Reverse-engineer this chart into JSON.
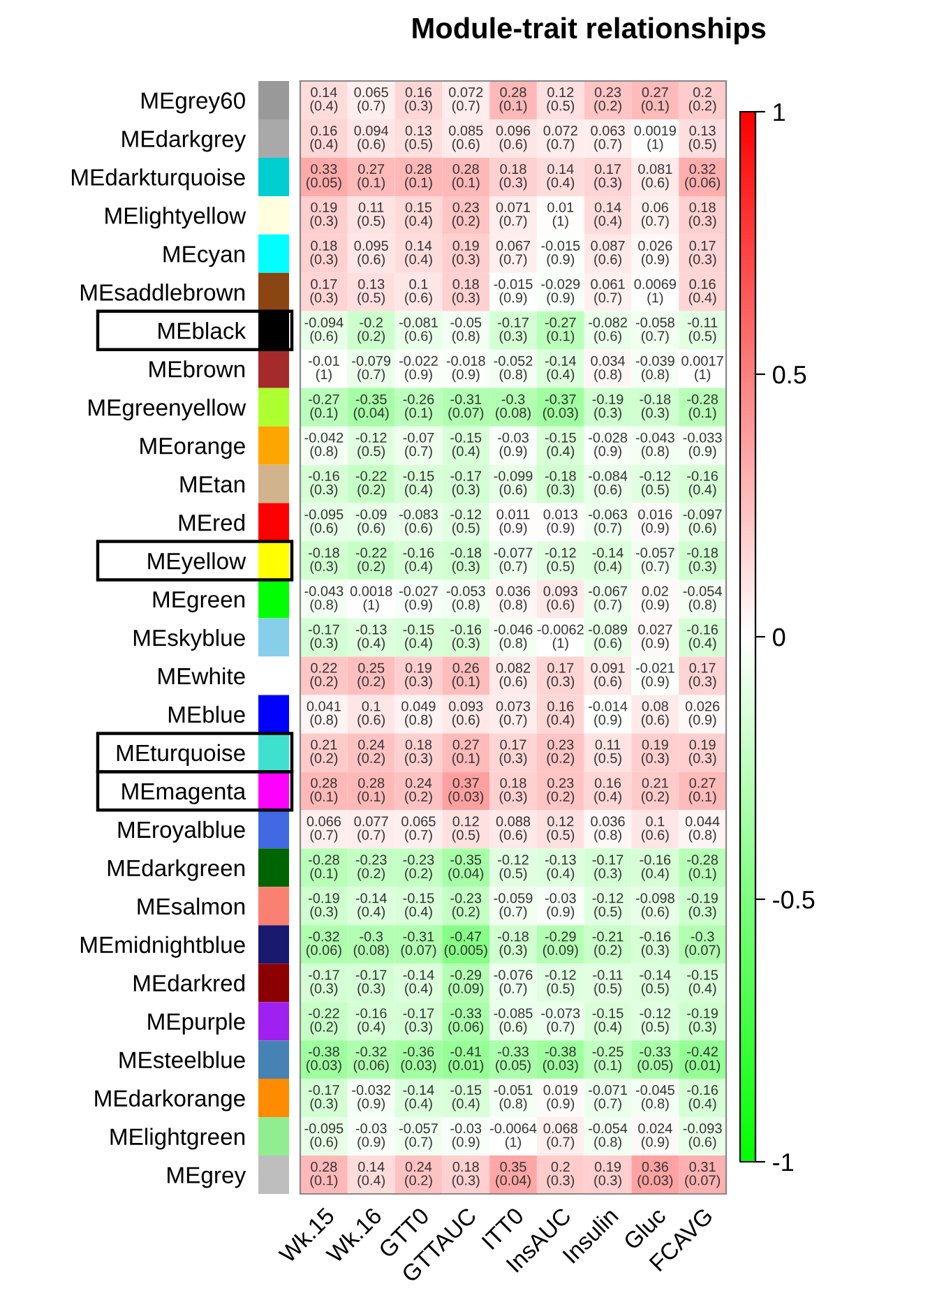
{
  "chart_data": {
    "type": "heatmap",
    "title": "Module-trait relationships",
    "categories": [
      "Wk.15",
      "Wk.16",
      "GTT0",
      "GTTAUC",
      "ITT0",
      "InsAUC",
      "Insulin",
      "Gluc",
      "FCAVG"
    ],
    "y_categories": [
      "MEgrey60",
      "MEdarkgrey",
      "MEdarkturquoise",
      "MElightyellow",
      "MEcyan",
      "MEsaddlebrown",
      "MEblack",
      "MEbrown",
      "MEgreenyellow",
      "MEorange",
      "MEtan",
      "MEred",
      "MEyellow",
      "MEgreen",
      "MEskyblue",
      "MEwhite",
      "MEblue",
      "MEturquoise",
      "MEmagenta",
      "MEroyalblue",
      "MEdarkgreen",
      "MEsalmon",
      "MEmidnightblue",
      "MEdarkred",
      "MEpurple",
      "MEsteelblue",
      "MEdarkorange",
      "MElightgreen",
      "MEgrey"
    ],
    "cells": [
      [
        0.14,
        0.065,
        0.16,
        0.072,
        0.28,
        0.12,
        0.23,
        0.27,
        0.2
      ],
      [
        0.16,
        0.094,
        0.13,
        0.085,
        0.096,
        0.072,
        0.063,
        0.0019,
        0.13
      ],
      [
        0.33,
        0.27,
        0.28,
        0.28,
        0.18,
        0.14,
        0.17,
        0.081,
        0.32
      ],
      [
        0.19,
        0.11,
        0.15,
        0.23,
        0.071,
        0.01,
        0.14,
        0.06,
        0.18
      ],
      [
        0.18,
        0.095,
        0.14,
        0.19,
        0.067,
        -0.015,
        0.087,
        0.026,
        0.17
      ],
      [
        0.17,
        0.13,
        0.1,
        0.18,
        -0.015,
        -0.029,
        0.061,
        0.0069,
        0.16
      ],
      [
        -0.094,
        -0.2,
        -0.081,
        -0.05,
        -0.17,
        -0.27,
        -0.082,
        -0.058,
        -0.11
      ],
      [
        -0.01,
        -0.079,
        -0.022,
        -0.018,
        -0.052,
        -0.14,
        0.034,
        -0.039,
        0.0017
      ],
      [
        -0.27,
        -0.35,
        -0.26,
        -0.31,
        -0.3,
        -0.37,
        -0.19,
        -0.18,
        -0.28
      ],
      [
        -0.042,
        -0.12,
        -0.07,
        -0.15,
        -0.03,
        -0.15,
        -0.028,
        -0.043,
        -0.033
      ],
      [
        -0.16,
        -0.22,
        -0.15,
        -0.17,
        -0.099,
        -0.18,
        -0.084,
        -0.12,
        -0.16
      ],
      [
        -0.095,
        -0.09,
        -0.083,
        -0.12,
        0.011,
        0.013,
        -0.063,
        0.016,
        -0.097
      ],
      [
        -0.18,
        -0.22,
        -0.16,
        -0.18,
        -0.077,
        -0.12,
        -0.14,
        -0.057,
        -0.18
      ],
      [
        -0.043,
        0.0018,
        -0.027,
        -0.053,
        0.036,
        0.093,
        -0.067,
        0.02,
        -0.054
      ],
      [
        -0.17,
        -0.13,
        -0.15,
        -0.16,
        -0.046,
        -0.0062,
        -0.089,
        0.027,
        -0.16
      ],
      [
        0.22,
        0.25,
        0.19,
        0.26,
        0.082,
        0.17,
        0.091,
        -0.021,
        0.17
      ],
      [
        0.041,
        0.1,
        0.049,
        0.093,
        0.073,
        0.16,
        -0.014,
        0.08,
        0.026
      ],
      [
        0.21,
        0.24,
        0.18,
        0.27,
        0.17,
        0.23,
        0.11,
        0.19,
        0.19
      ],
      [
        0.28,
        0.28,
        0.24,
        0.37,
        0.18,
        0.23,
        0.16,
        0.21,
        0.27
      ],
      [
        0.066,
        0.077,
        0.065,
        0.12,
        0.088,
        0.12,
        0.036,
        0.1,
        0.044
      ],
      [
        -0.28,
        -0.23,
        -0.23,
        -0.35,
        -0.12,
        -0.13,
        -0.17,
        -0.16,
        -0.28
      ],
      [
        -0.19,
        -0.14,
        -0.15,
        -0.23,
        -0.059,
        -0.03,
        -0.12,
        -0.098,
        -0.19
      ],
      [
        -0.32,
        -0.3,
        -0.31,
        -0.47,
        -0.18,
        -0.29,
        -0.21,
        -0.16,
        -0.3
      ],
      [
        -0.17,
        -0.17,
        -0.14,
        -0.29,
        -0.076,
        -0.12,
        -0.11,
        -0.14,
        -0.15
      ],
      [
        -0.22,
        -0.16,
        -0.17,
        -0.33,
        -0.085,
        -0.073,
        -0.15,
        -0.12,
        -0.19
      ],
      [
        -0.38,
        -0.32,
        -0.36,
        -0.41,
        -0.33,
        -0.38,
        -0.25,
        -0.33,
        -0.42
      ],
      [
        -0.17,
        -0.032,
        -0.14,
        -0.15,
        -0.051,
        0.019,
        -0.071,
        -0.045,
        -0.16
      ],
      [
        -0.095,
        -0.03,
        -0.057,
        -0.03,
        -0.0064,
        0.068,
        -0.054,
        0.024,
        -0.093
      ],
      [
        0.28,
        0.14,
        0.24,
        0.18,
        0.35,
        0.2,
        0.19,
        0.36,
        0.31
      ]
    ],
    "cell_labels": [
      [
        "0.14\n(0.4)",
        "0.065\n(0.7)",
        "0.16\n(0.3)",
        "0.072\n(0.7)",
        "0.28\n(0.1)",
        "0.12\n(0.5)",
        "0.23\n(0.2)",
        "0.27\n(0.1)",
        "0.2\n(0.2)"
      ],
      [
        "0.16\n(0.4)",
        "0.094\n(0.6)",
        "0.13\n(0.5)",
        "0.085\n(0.6)",
        "0.096\n(0.6)",
        "0.072\n(0.7)",
        "0.063\n(0.7)",
        "0.0019\n(1)",
        "0.13\n(0.5)"
      ],
      [
        "0.33\n(0.05)",
        "0.27\n(0.1)",
        "0.28\n(0.1)",
        "0.28\n(0.1)",
        "0.18\n(0.3)",
        "0.14\n(0.4)",
        "0.17\n(0.3)",
        "0.081\n(0.6)",
        "0.32\n(0.06)"
      ],
      [
        "0.19\n(0.3)",
        "0.11\n(0.5)",
        "0.15\n(0.4)",
        "0.23\n(0.2)",
        "0.071\n(0.7)",
        "0.01\n(1)",
        "0.14\n(0.4)",
        "0.06\n(0.7)",
        "0.18\n(0.3)"
      ],
      [
        "0.18\n(0.3)",
        "0.095\n(0.6)",
        "0.14\n(0.4)",
        "0.19\n(0.3)",
        "0.067\n(0.7)",
        "-0.015\n(0.9)",
        "0.087\n(0.6)",
        "0.026\n(0.9)",
        "0.17\n(0.3)"
      ],
      [
        "0.17\n(0.3)",
        "0.13\n(0.5)",
        "0.1\n(0.6)",
        "0.18\n(0.3)",
        "-0.015\n(0.9)",
        "-0.029\n(0.9)",
        "0.061\n(0.7)",
        "0.0069\n(1)",
        "0.16\n(0.4)"
      ],
      [
        "-0.094\n(0.6)",
        "-0.2\n(0.2)",
        "-0.081\n(0.6)",
        "-0.05\n(0.8)",
        "-0.17\n(0.3)",
        "-0.27\n(0.1)",
        "-0.082\n(0.6)",
        "-0.058\n(0.7)",
        "-0.11\n(0.5)"
      ],
      [
        "-0.01\n(1)",
        "-0.079\n(0.7)",
        "-0.022\n(0.9)",
        "-0.018\n(0.9)",
        "-0.052\n(0.8)",
        "-0.14\n(0.4)",
        "0.034\n(0.8)",
        "-0.039\n(0.8)",
        "0.0017\n(1)"
      ],
      [
        "-0.27\n(0.1)",
        "-0.35\n(0.04)",
        "-0.26\n(0.1)",
        "-0.31\n(0.07)",
        "-0.3\n(0.08)",
        "-0.37\n(0.03)",
        "-0.19\n(0.3)",
        "-0.18\n(0.3)",
        "-0.28\n(0.1)"
      ],
      [
        "-0.042\n(0.8)",
        "-0.12\n(0.5)",
        "-0.07\n(0.7)",
        "-0.15\n(0.4)",
        "-0.03\n(0.9)",
        "-0.15\n(0.4)",
        "-0.028\n(0.9)",
        "-0.043\n(0.8)",
        "-0.033\n(0.9)"
      ],
      [
        "-0.16\n(0.3)",
        "-0.22\n(0.2)",
        "-0.15\n(0.4)",
        "-0.17\n(0.3)",
        "-0.099\n(0.6)",
        "-0.18\n(0.3)",
        "-0.084\n(0.6)",
        "-0.12\n(0.5)",
        "-0.16\n(0.4)"
      ],
      [
        "-0.095\n(0.6)",
        "-0.09\n(0.6)",
        "-0.083\n(0.6)",
        "-0.12\n(0.5)",
        "0.011\n(0.9)",
        "0.013\n(0.9)",
        "-0.063\n(0.7)",
        "0.016\n(0.9)",
        "-0.097\n(0.6)"
      ],
      [
        "-0.18\n(0.3)",
        "-0.22\n(0.2)",
        "-0.16\n(0.4)",
        "-0.18\n(0.3)",
        "-0.077\n(0.7)",
        "-0.12\n(0.5)",
        "-0.14\n(0.4)",
        "-0.057\n(0.7)",
        "-0.18\n(0.3)"
      ],
      [
        "-0.043\n(0.8)",
        "0.0018\n(1)",
        "-0.027\n(0.9)",
        "-0.053\n(0.8)",
        "0.036\n(0.8)",
        "0.093\n(0.6)",
        "-0.067\n(0.7)",
        "0.02\n(0.9)",
        "-0.054\n(0.8)"
      ],
      [
        "-0.17\n(0.3)",
        "-0.13\n(0.4)",
        "-0.15\n(0.4)",
        "-0.16\n(0.3)",
        "-0.046\n(0.8)",
        "-0.0062\n(1)",
        "-0.089\n(0.6)",
        "0.027\n(0.9)",
        "-0.16\n(0.4)"
      ],
      [
        "0.22\n(0.2)",
        "0.25\n(0.2)",
        "0.19\n(0.3)",
        "0.26\n(0.1)",
        "0.082\n(0.6)",
        "0.17\n(0.3)",
        "0.091\n(0.6)",
        "-0.021\n(0.9)",
        "0.17\n(0.3)"
      ],
      [
        "0.041\n(0.8)",
        "0.1\n(0.6)",
        "0.049\n(0.8)",
        "0.093\n(0.6)",
        "0.073\n(0.7)",
        "0.16\n(0.4)",
        "-0.014\n(0.9)",
        "0.08\n(0.6)",
        "0.026\n(0.9)"
      ],
      [
        "0.21\n(0.2)",
        "0.24\n(0.2)",
        "0.18\n(0.3)",
        "0.27\n(0.1)",
        "0.17\n(0.3)",
        "0.23\n(0.2)",
        "0.11\n(0.5)",
        "0.19\n(0.3)",
        "0.19\n(0.3)"
      ],
      [
        "0.28\n(0.1)",
        "0.28\n(0.1)",
        "0.24\n(0.2)",
        "0.37\n(0.03)",
        "0.18\n(0.3)",
        "0.23\n(0.2)",
        "0.16\n(0.4)",
        "0.21\n(0.2)",
        "0.27\n(0.1)"
      ],
      [
        "0.066\n(0.7)",
        "0.077\n(0.7)",
        "0.065\n(0.7)",
        "0.12\n(0.5)",
        "0.088\n(0.6)",
        "0.12\n(0.5)",
        "0.036\n(0.8)",
        "0.1\n(0.6)",
        "0.044\n(0.8)"
      ],
      [
        "-0.28\n(0.1)",
        "-0.23\n(0.2)",
        "-0.23\n(0.2)",
        "-0.35\n(0.04)",
        "-0.12\n(0.5)",
        "-0.13\n(0.4)",
        "-0.17\n(0.3)",
        "-0.16\n(0.4)",
        "-0.28\n(0.1)"
      ],
      [
        "-0.19\n(0.3)",
        "-0.14\n(0.4)",
        "-0.15\n(0.4)",
        "-0.23\n(0.2)",
        "-0.059\n(0.7)",
        "-0.03\n(0.9)",
        "-0.12\n(0.5)",
        "-0.098\n(0.6)",
        "-0.19\n(0.3)"
      ],
      [
        "-0.32\n(0.06)",
        "-0.3\n(0.08)",
        "-0.31\n(0.07)",
        "-0.47\n(0.005)",
        "-0.18\n(0.3)",
        "-0.29\n(0.09)",
        "-0.21\n(0.2)",
        "-0.16\n(0.3)",
        "-0.3\n(0.07)"
      ],
      [
        "-0.17\n(0.3)",
        "-0.17\n(0.3)",
        "-0.14\n(0.4)",
        "-0.29\n(0.09)",
        "-0.076\n(0.7)",
        "-0.12\n(0.5)",
        "-0.11\n(0.5)",
        "-0.14\n(0.5)",
        "-0.15\n(0.4)"
      ],
      [
        "-0.22\n(0.2)",
        "-0.16\n(0.4)",
        "-0.17\n(0.3)",
        "-0.33\n(0.06)",
        "-0.085\n(0.6)",
        "-0.073\n(0.7)",
        "-0.15\n(0.4)",
        "-0.12\n(0.5)",
        "-0.19\n(0.3)"
      ],
      [
        "-0.38\n(0.03)",
        "-0.32\n(0.06)",
        "-0.36\n(0.03)",
        "-0.41\n(0.01)",
        "-0.33\n(0.05)",
        "-0.38\n(0.03)",
        "-0.25\n(0.1)",
        "-0.33\n(0.05)",
        "-0.42\n(0.01)"
      ],
      [
        "-0.17\n(0.3)",
        "-0.032\n(0.9)",
        "-0.14\n(0.4)",
        "-0.15\n(0.4)",
        "-0.051\n(0.8)",
        "0.019\n(0.9)",
        "-0.071\n(0.7)",
        "-0.045\n(0.8)",
        "-0.16\n(0.4)"
      ],
      [
        "-0.095\n(0.6)",
        "-0.03\n(0.9)",
        "-0.057\n(0.7)",
        "-0.03\n(0.9)",
        "-0.0064\n(1)",
        "0.068\n(0.7)",
        "-0.054\n(0.8)",
        "0.024\n(0.9)",
        "-0.093\n(0.6)"
      ],
      [
        "0.28\n(0.1)",
        "0.14\n(0.4)",
        "0.24\n(0.2)",
        "0.18\n(0.3)",
        "0.35\n(0.04)",
        "0.2\n(0.3)",
        "0.19\n(0.3)",
        "0.36\n(0.03)",
        "0.31\n(0.07)"
      ]
    ],
    "clim": [
      -1,
      1
    ],
    "cticks": [
      {
        "value": -1,
        "label": "-1"
      },
      {
        "value": -0.5,
        "label": "-0.5"
      },
      0,
      0.5,
      1
    ]
  }
}
